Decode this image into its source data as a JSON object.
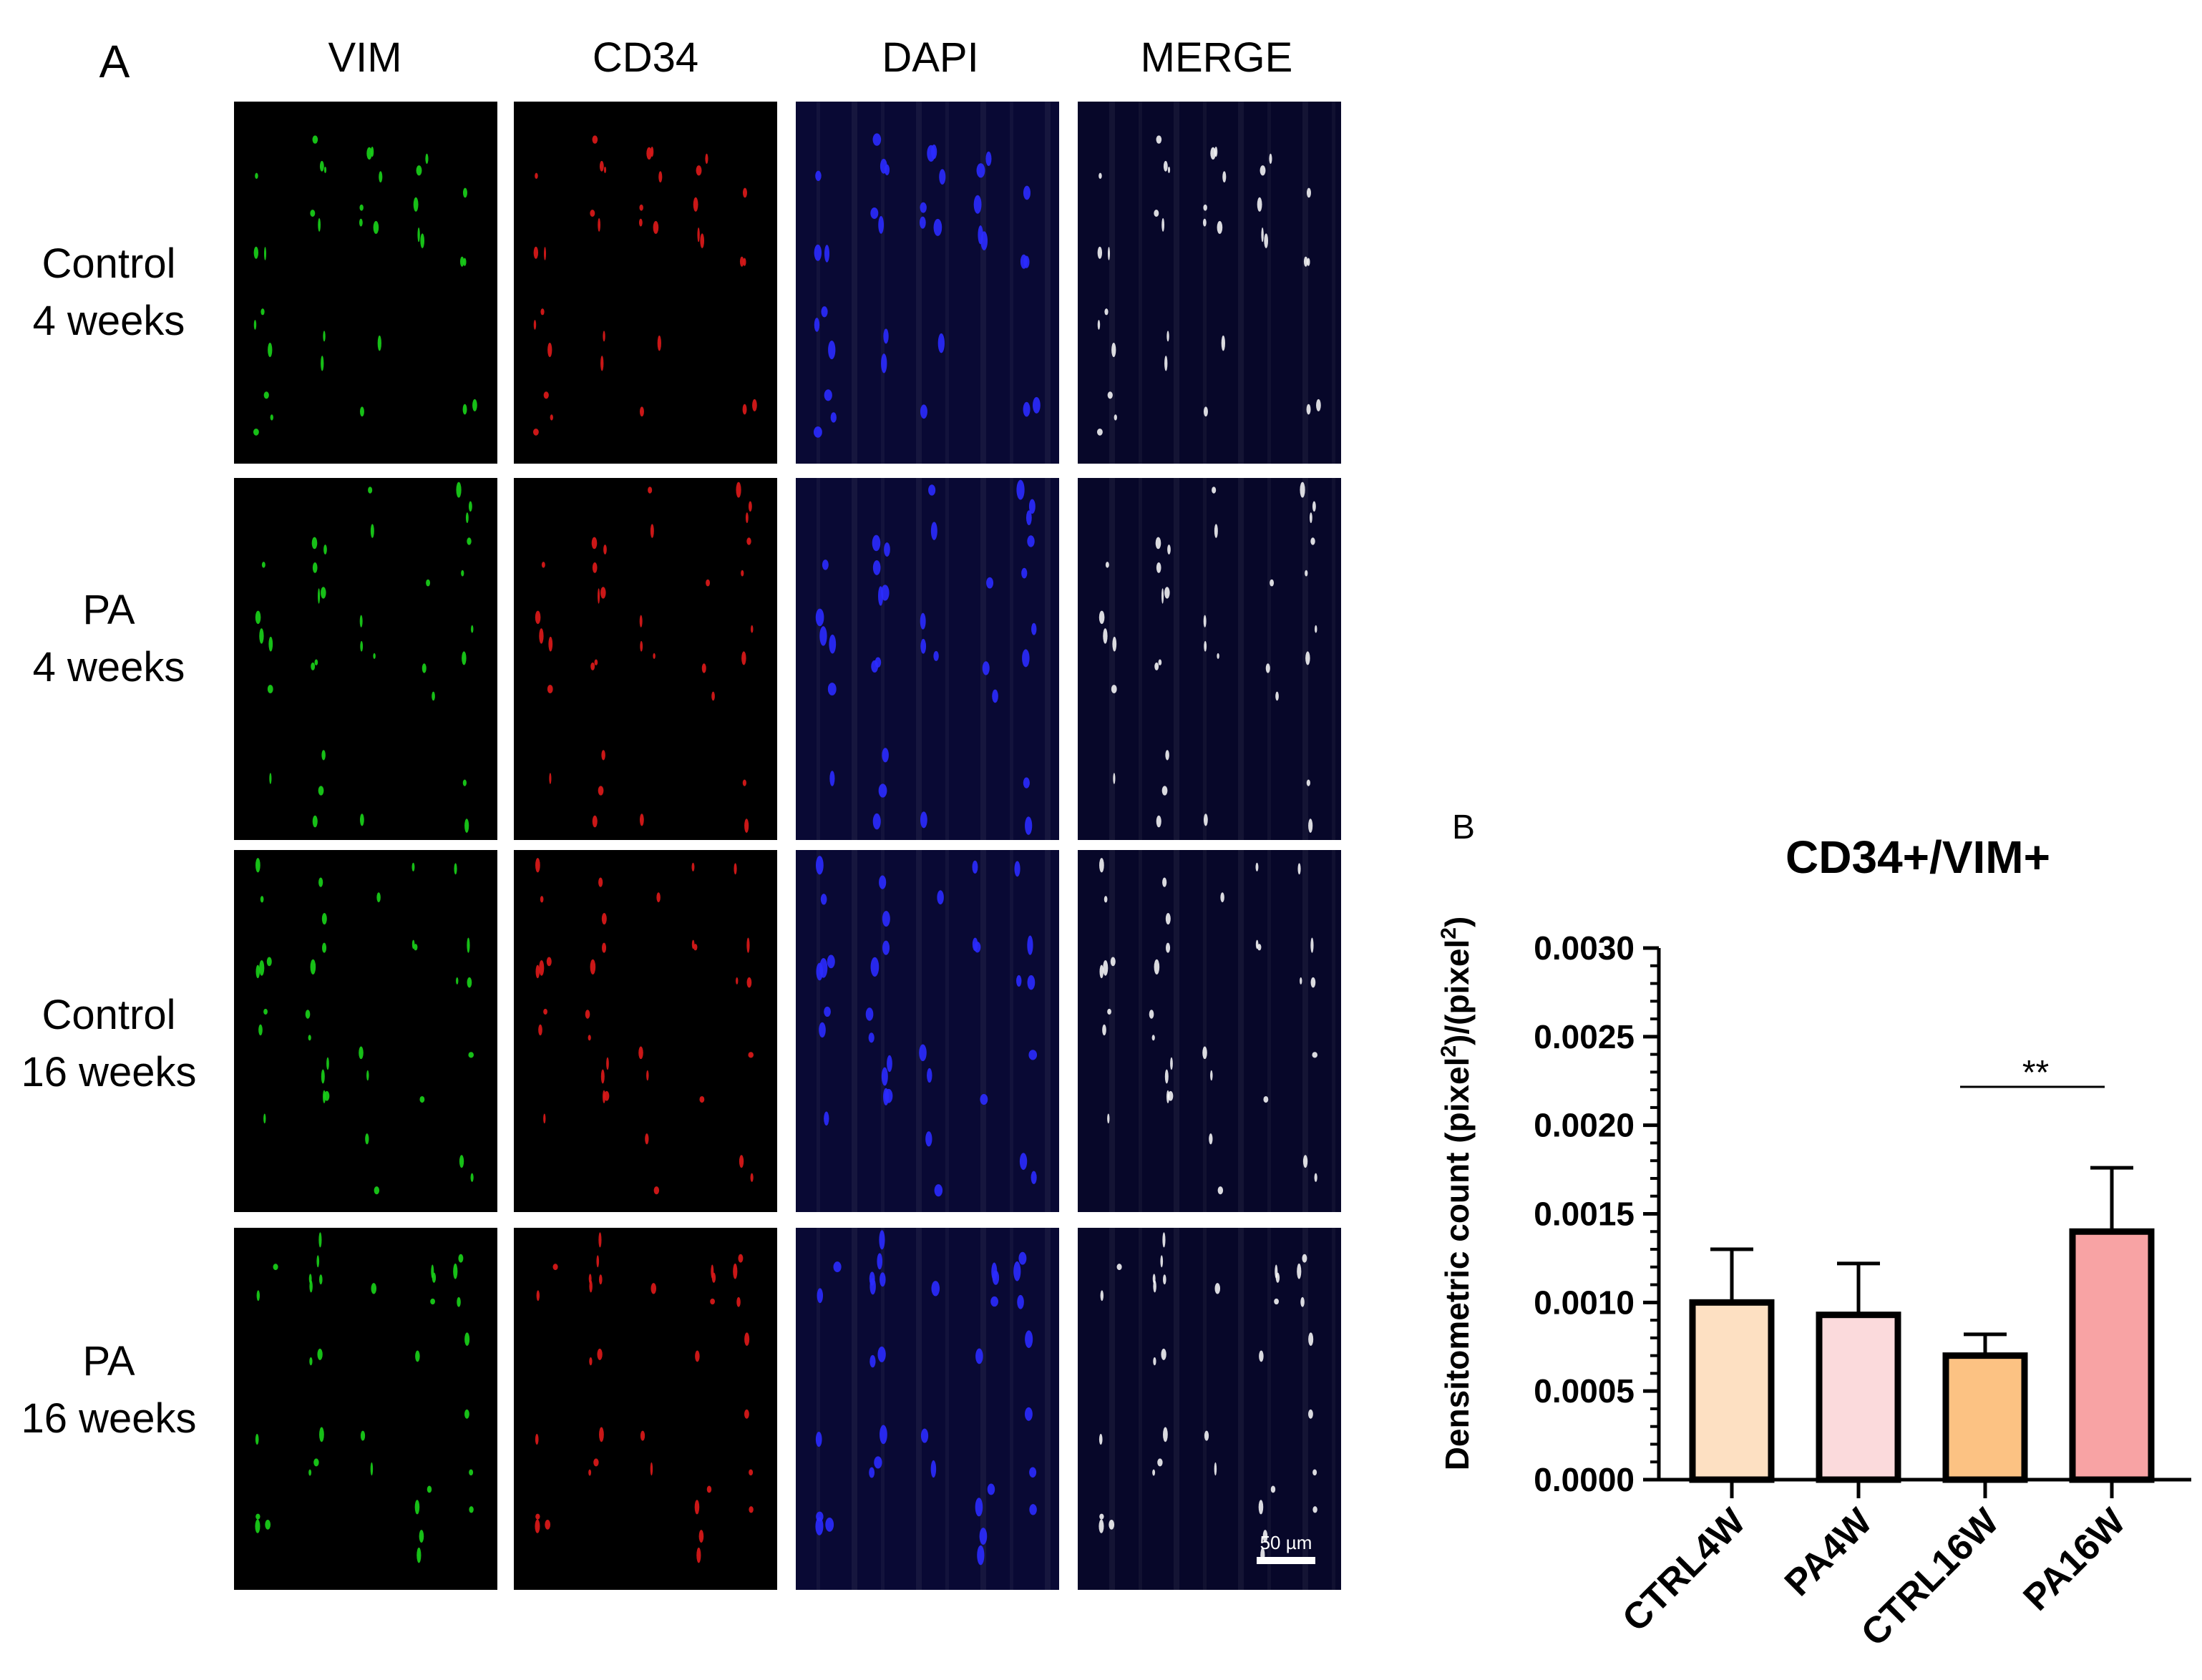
{
  "panel_a": {
    "label": "A",
    "columns": [
      "VIM",
      "CD34",
      "DAPI",
      "MERGE"
    ],
    "rows": [
      {
        "line1": "Control",
        "line2": "4 weeks"
      },
      {
        "line1": "PA",
        "line2": "4 weeks"
      },
      {
        "line1": "Control",
        "line2": "16 weeks"
      },
      {
        "line1": "PA",
        "line2": "16 weeks"
      }
    ],
    "scale_bar": "50 µm",
    "channel_colors": {
      "VIM": "#19d419",
      "CD34": "#e01a1a",
      "DAPI": "#2b2bff",
      "MERGE": "#ffffff"
    }
  },
  "panel_b": {
    "label": "B"
  },
  "chart_data": {
    "type": "bar",
    "title": "CD34+/VIM+",
    "xlabel": "",
    "ylabel": "Densitometric count (pixel²)/(pixel²)",
    "ylabel_parts": [
      "Densitometric count (pixel",
      "2",
      ")/(pixel",
      "2",
      ")"
    ],
    "categories": [
      "CTRL4W",
      "PA4W",
      "CTRL16W",
      "PA16W"
    ],
    "values": [
      0.001,
      0.00093,
      0.0007,
      0.0014
    ],
    "error_upper": [
      0.0013,
      0.00122,
      0.00082,
      0.00176
    ],
    "colors": [
      "#fde0c2",
      "#fbdadc",
      "#fcc283",
      "#f8a3a4"
    ],
    "ylim": [
      0,
      0.003
    ],
    "yticks": [
      "0.0000",
      "0.0005",
      "0.0010",
      "0.0015",
      "0.0020",
      "0.0025",
      "0.0030"
    ],
    "grid": false,
    "significance": {
      "from": "CTRL16W",
      "to": "PA16W",
      "label": "**"
    }
  }
}
